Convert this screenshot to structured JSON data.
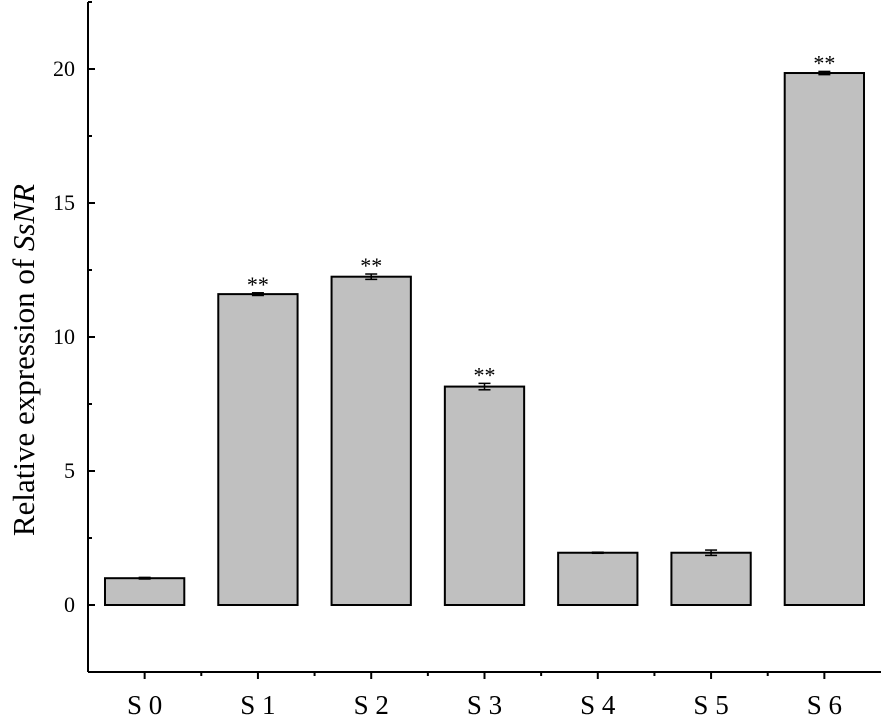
{
  "chart_data": {
    "type": "bar",
    "ylabel_prefix": "Relative expression of ",
    "ylabel_gene": "SsNR",
    "xlabel": "",
    "categories": [
      "S 0",
      "S 1",
      "S 2",
      "S 3",
      "S 4",
      "S 5",
      "S 6"
    ],
    "values": [
      1.0,
      11.6,
      12.25,
      8.15,
      1.95,
      1.95,
      19.85
    ],
    "errors": [
      0.03,
      0.05,
      0.1,
      0.12,
      0.02,
      0.1,
      0.06
    ],
    "significance": [
      "",
      "**",
      "**",
      "**",
      "",
      "",
      "**"
    ],
    "ylim": [
      -2.5,
      22.5
    ],
    "yticks": [
      0,
      5,
      10,
      15,
      20
    ],
    "bar_color": "#c0c0c0",
    "edge_color": "#000000",
    "grid": false,
    "legend": "none"
  }
}
